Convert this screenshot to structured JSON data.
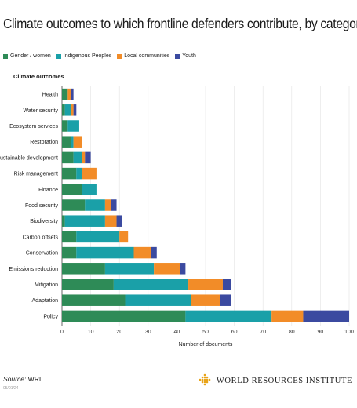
{
  "title": "Climate outcomes to which frontline defenders contribute, by category",
  "source_label": "Source:",
  "source_value": "WRI",
  "date_text": "05/01/24",
  "logo_text": "WORLD RESOURCES INSTITUTE",
  "colors": {
    "Gender / women": "#2e8b57",
    "Indigenous Peoples": "#1aa0a8",
    "Local communities": "#f28c28",
    "Youth": "#3b4aa0"
  },
  "chart_data": {
    "type": "bar",
    "orientation": "horizontal",
    "stacked": true,
    "title": "Climate outcomes to which frontline defenders contribute, by category",
    "ylabel": "Climate outcomes",
    "xlabel": "Number of documents",
    "xlim": [
      0,
      100
    ],
    "xticks": [
      0,
      10,
      20,
      30,
      40,
      50,
      60,
      70,
      80,
      90,
      100
    ],
    "grid": "vertical",
    "legend_position": "top-left",
    "categories": [
      "Health",
      "Water security",
      "Ecosystem services",
      "Restoration",
      "Sustainable development",
      "Risk management",
      "Finance",
      "Food security",
      "Biodiversity",
      "Carbon offsets",
      "Conservation",
      "Emissions reduction",
      "Mitigation",
      "Adaptation",
      "Policy"
    ],
    "series": [
      {
        "name": "Gender / women",
        "values": [
          2,
          1,
          2,
          3,
          4,
          5,
          7,
          8,
          1,
          5,
          5,
          15,
          18,
          22,
          43
        ]
      },
      {
        "name": "Indigenous Peoples",
        "values": [
          0,
          2,
          4,
          1,
          3,
          2,
          5,
          7,
          14,
          15,
          20,
          17,
          26,
          23,
          30
        ]
      },
      {
        "name": "Local communities",
        "values": [
          1,
          1,
          0,
          3,
          1,
          5,
          0,
          2,
          4,
          3,
          6,
          9,
          12,
          10,
          11
        ]
      },
      {
        "name": "Youth",
        "values": [
          1,
          1,
          0,
          0,
          2,
          0,
          0,
          2,
          2,
          0,
          2,
          2,
          3,
          4,
          16
        ]
      }
    ]
  }
}
